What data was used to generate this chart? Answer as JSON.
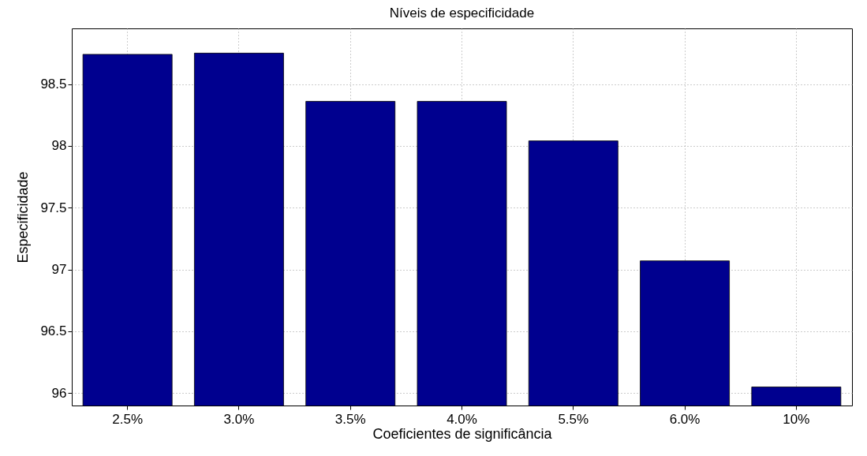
{
  "chart_data": {
    "type": "bar",
    "title": "Níveis de especificidade",
    "xlabel": "Coeficientes de significância",
    "ylabel": "Especificidade",
    "categories": [
      "2.5%",
      "3.0%",
      "3.5%",
      "4.0%",
      "5.5%",
      "6.0%",
      "10%"
    ],
    "values": [
      98.74,
      98.75,
      98.36,
      98.36,
      98.04,
      97.07,
      96.05
    ],
    "color": "#00008f",
    "ylim": [
      95.9,
      98.95
    ],
    "yticks": [
      96,
      96.5,
      97,
      97.5,
      98,
      98.5
    ],
    "grid": true
  }
}
